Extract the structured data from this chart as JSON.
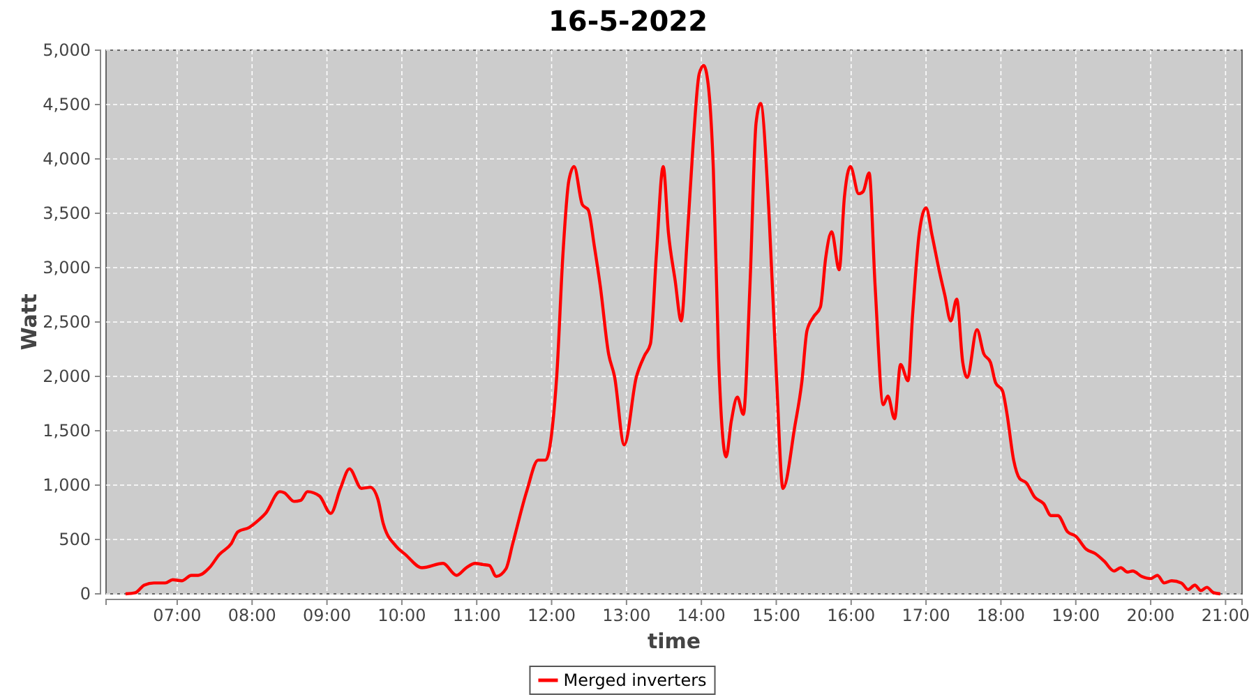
{
  "chart_data": {
    "type": "line",
    "title": "16-5-2022",
    "xlabel": "time",
    "ylabel": "Watt",
    "xlim": [
      6.05,
      21.22
    ],
    "ylim": [
      0,
      5000
    ],
    "xticks": [
      {
        "value": 7,
        "label": "07:00"
      },
      {
        "value": 8,
        "label": "08:00"
      },
      {
        "value": 9,
        "label": "09:00"
      },
      {
        "value": 10,
        "label": "10:00"
      },
      {
        "value": 11,
        "label": "11:00"
      },
      {
        "value": 12,
        "label": "12:00"
      },
      {
        "value": 13,
        "label": "13:00"
      },
      {
        "value": 14,
        "label": "14:00"
      },
      {
        "value": 15,
        "label": "15:00"
      },
      {
        "value": 16,
        "label": "16:00"
      },
      {
        "value": 17,
        "label": "17:00"
      },
      {
        "value": 18,
        "label": "18:00"
      },
      {
        "value": 19,
        "label": "19:00"
      },
      {
        "value": 20,
        "label": "20:00"
      },
      {
        "value": 21,
        "label": "21:00"
      }
    ],
    "yticks": [
      0,
      500,
      {
        "value": 1000,
        "label": "1,000"
      },
      {
        "value": 1500,
        "label": "1,500"
      },
      {
        "value": 2000,
        "label": "2,000"
      },
      {
        "value": 2500,
        "label": "2,500"
      },
      {
        "value": 3000,
        "label": "3,000"
      },
      {
        "value": 3500,
        "label": "3,500"
      },
      {
        "value": 4000,
        "label": "4,000"
      },
      {
        "value": 4500,
        "label": "4,500"
      },
      {
        "value": 5000,
        "label": "5,000"
      }
    ],
    "grid": true,
    "legend": "bottom",
    "marker": "none",
    "line_style": "solid",
    "series": [
      {
        "name": "Merged inverters",
        "color": "#ff0000",
        "x": [
          6.31,
          6.44,
          6.56,
          6.69,
          6.84,
          6.94,
          7.06,
          7.19,
          7.28,
          7.43,
          7.56,
          7.72,
          7.81,
          7.96,
          8.09,
          8.18,
          8.37,
          8.43,
          8.56,
          8.65,
          8.74,
          8.9,
          9.05,
          9.18,
          9.3,
          9.46,
          9.58,
          9.68,
          9.75,
          9.92,
          10.05,
          10.27,
          10.55,
          10.73,
          10.86,
          10.98,
          11.08,
          11.17,
          11.26,
          11.39,
          11.48,
          11.67,
          11.82,
          11.92,
          12.01,
          12.07,
          12.15,
          12.23,
          12.3,
          12.41,
          12.49,
          12.57,
          12.65,
          12.76,
          12.84,
          12.97,
          13.13,
          13.24,
          13.32,
          13.4,
          13.49,
          13.56,
          13.65,
          13.73,
          13.81,
          13.89,
          13.97,
          14.03,
          14.09,
          14.16,
          14.23,
          14.33,
          14.4,
          14.48,
          14.56,
          14.65,
          14.73,
          14.79,
          14.9,
          15.0,
          15.09,
          15.25,
          15.34,
          15.41,
          15.5,
          15.59,
          15.66,
          15.74,
          15.84,
          15.91,
          15.99,
          16.1,
          16.16,
          16.24,
          16.32,
          16.43,
          16.49,
          16.58,
          16.66,
          16.76,
          16.82,
          16.91,
          17.0,
          17.08,
          17.18,
          17.25,
          17.33,
          17.41,
          17.49,
          17.55,
          17.68,
          17.77,
          17.86,
          17.93,
          18.02,
          18.08,
          18.17,
          18.25,
          18.34,
          18.45,
          18.57,
          18.67,
          18.76,
          18.89,
          19.0,
          19.14,
          19.26,
          19.38,
          19.51,
          19.6,
          19.69,
          19.76,
          19.88,
          20.0,
          20.09,
          20.18,
          20.28,
          20.41,
          20.5,
          20.59,
          20.67,
          20.75,
          20.84,
          20.93
        ],
        "values": [
          0,
          10,
          80,
          100,
          100,
          130,
          120,
          170,
          170,
          240,
          360,
          460,
          570,
          610,
          680,
          740,
          940,
          930,
          850,
          860,
          940,
          900,
          740,
          970,
          1150,
          970,
          980,
          870,
          650,
          440,
          360,
          240,
          280,
          170,
          240,
          280,
          270,
          260,
          160,
          230,
          460,
          950,
          1230,
          1230,
          1530,
          2020,
          3110,
          3800,
          3930,
          3580,
          3530,
          3200,
          2830,
          2210,
          2000,
          1370,
          1990,
          2190,
          2300,
          3130,
          3930,
          3320,
          2880,
          2510,
          3260,
          4140,
          4780,
          4860,
          4690,
          3900,
          2170,
          1260,
          1590,
          1810,
          1650,
          2860,
          4330,
          4510,
          3540,
          2040,
          970,
          1550,
          1940,
          2420,
          2550,
          2640,
          3090,
          3330,
          2980,
          3650,
          3930,
          3680,
          3700,
          3870,
          2830,
          1740,
          1820,
          1610,
          2110,
          1960,
          2560,
          3320,
          3550,
          3300,
          2960,
          2750,
          2510,
          2710,
          2130,
          1990,
          2430,
          2210,
          2130,
          1940,
          1870,
          1660,
          1230,
          1060,
          1020,
          890,
          830,
          720,
          720,
          570,
          530,
          410,
          370,
          300,
          210,
          240,
          200,
          210,
          160,
          140,
          170,
          100,
          120,
          100,
          40,
          80,
          30,
          60,
          10,
          0
        ]
      }
    ]
  }
}
